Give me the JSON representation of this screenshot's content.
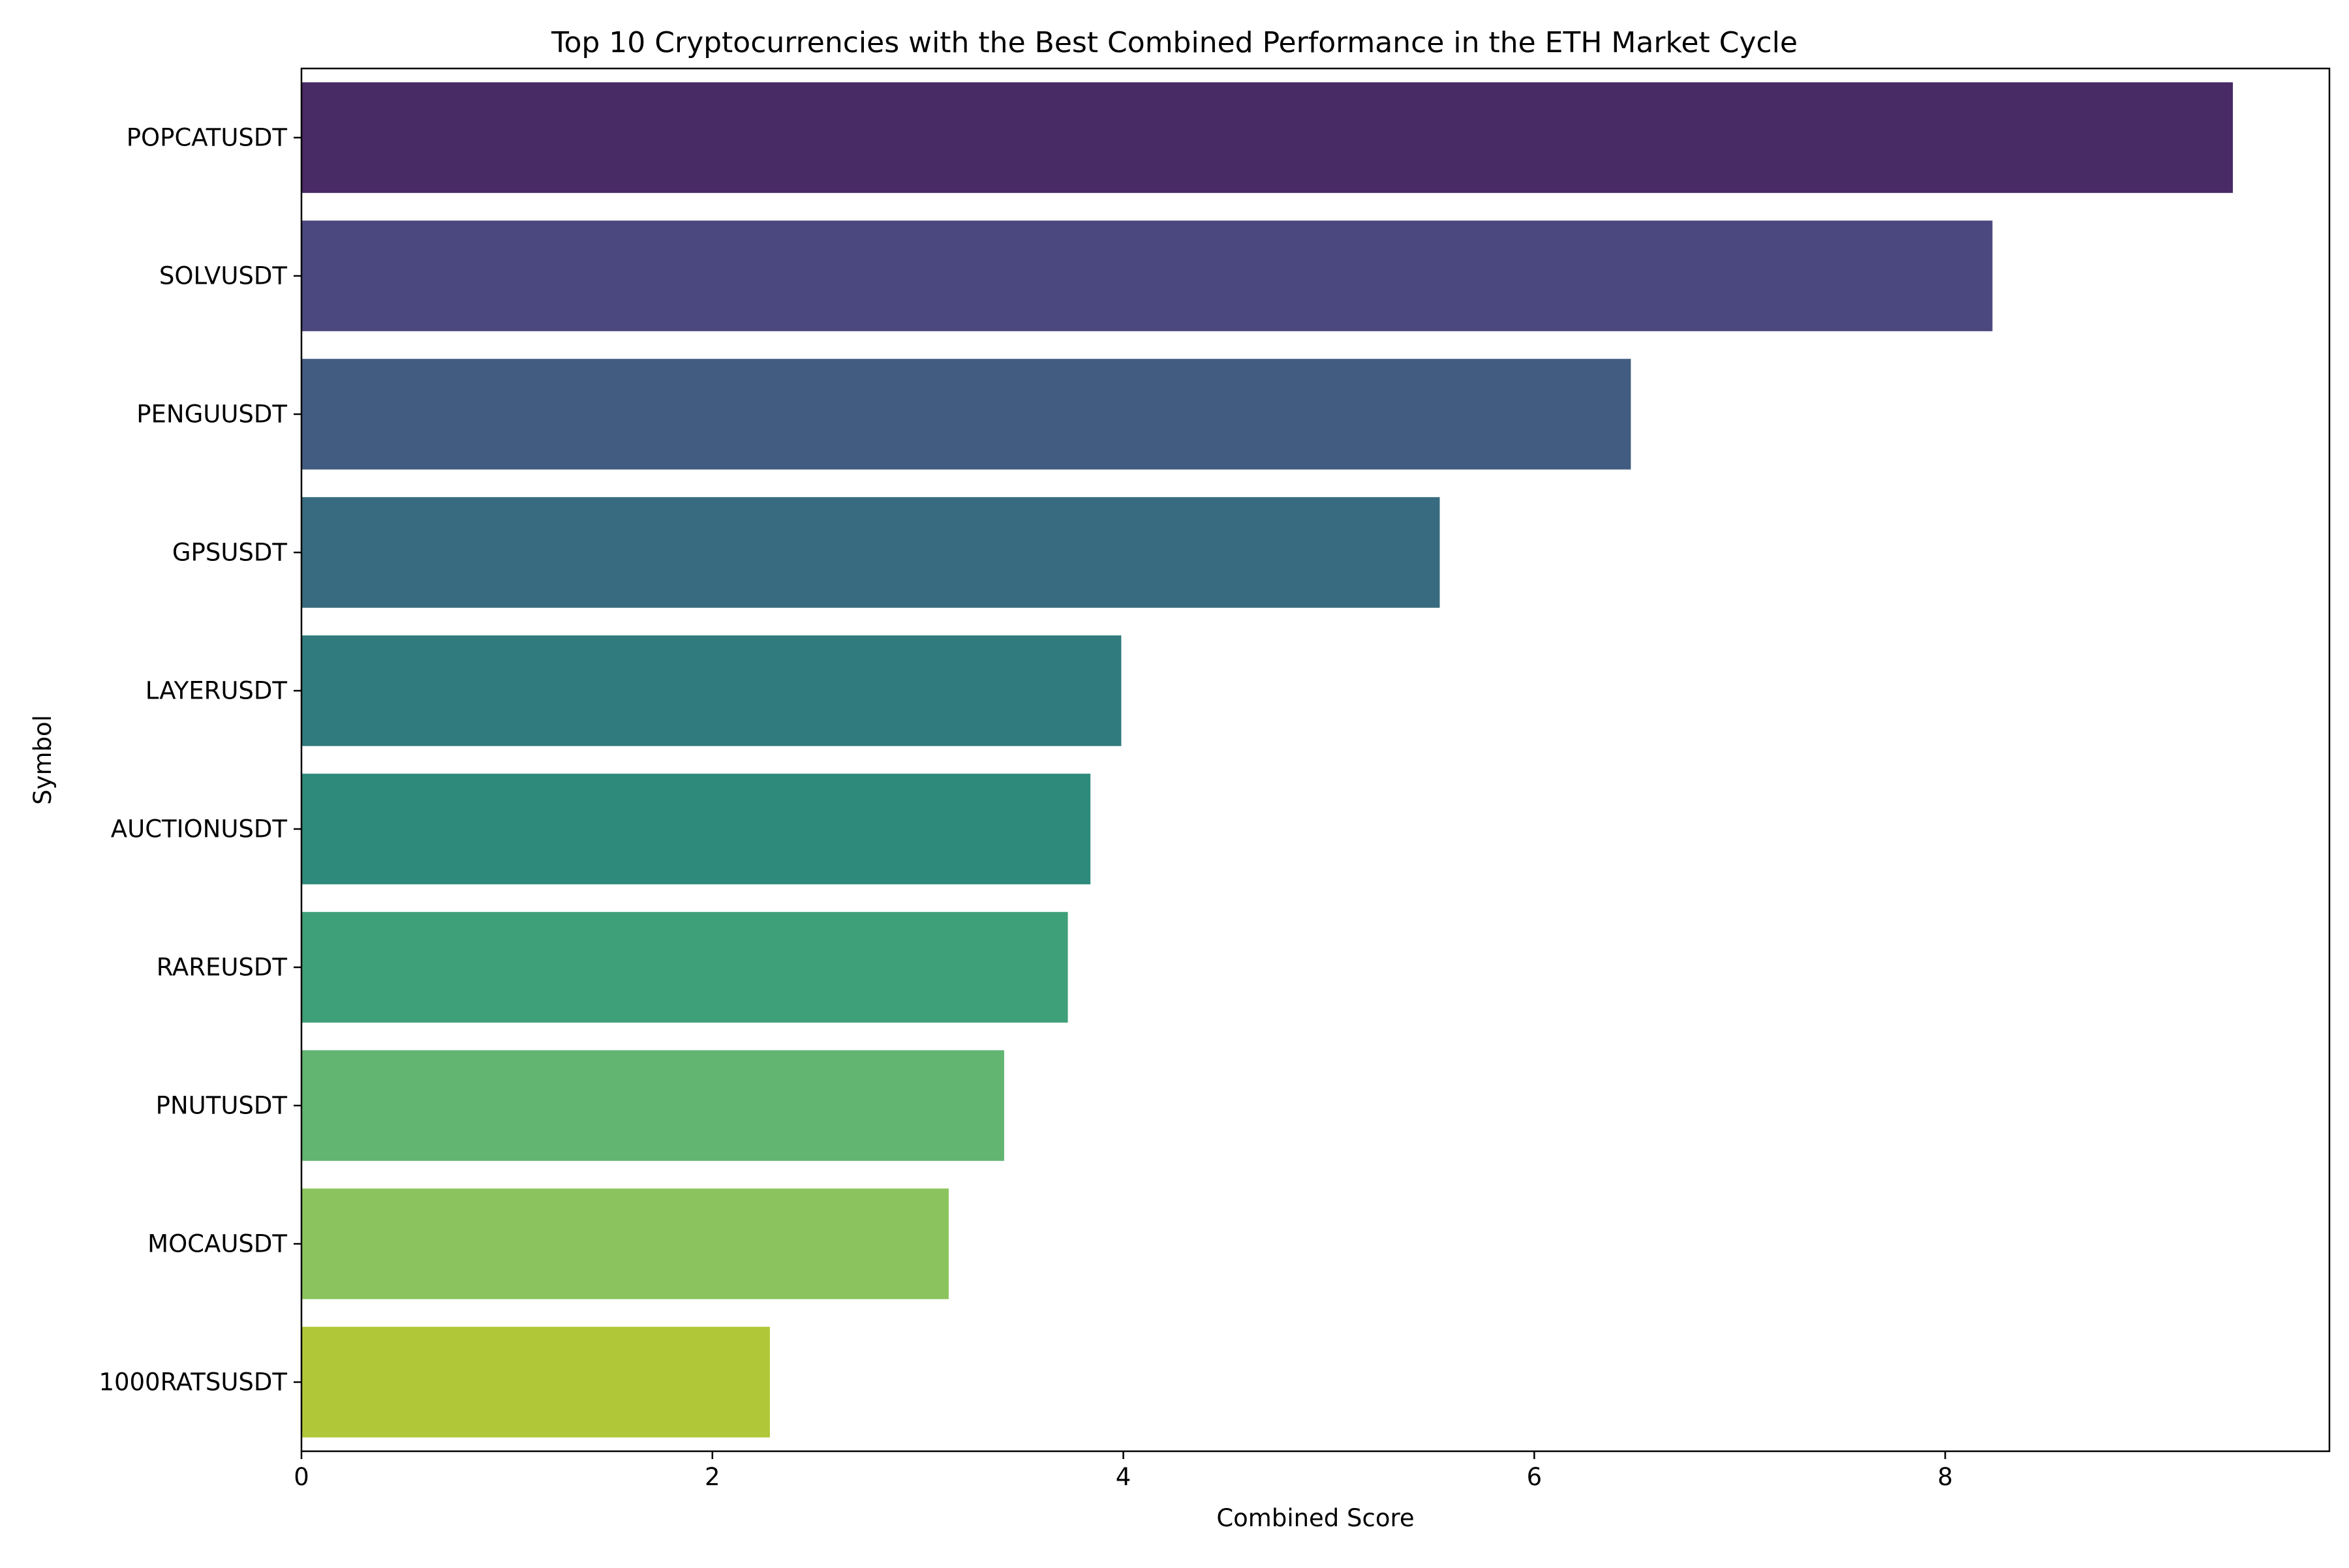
{
  "chart_data": {
    "type": "bar",
    "orientation": "horizontal",
    "title": "Top 10 Cryptocurrencies with the Best Combined Performance in the ETH Market Cycle",
    "xlabel": "Combined Score",
    "ylabel": "Symbol",
    "xlim": [
      0,
      9.87
    ],
    "xticks": [
      0,
      2,
      4,
      6,
      8
    ],
    "grid": false,
    "categories": [
      "POPCATUSDT",
      "SOLVUSDT",
      "PENGUUSDT",
      "GPSUSDT",
      "LAYERUSDT",
      "AUCTIONUSDT",
      "RAREUSDT",
      "PNUTUSDT",
      "MOCAUSDT",
      "1000RATSUSDT"
    ],
    "values": [
      9.4,
      8.23,
      6.47,
      5.54,
      3.99,
      3.84,
      3.73,
      3.42,
      3.15,
      2.28
    ],
    "colors": [
      "#482a65",
      "#4a487e",
      "#425b81",
      "#386b7f",
      "#2f7b7d",
      "#2e8a7a",
      "#3ea078",
      "#62b471",
      "#8bc45e",
      "#b0c837"
    ]
  }
}
